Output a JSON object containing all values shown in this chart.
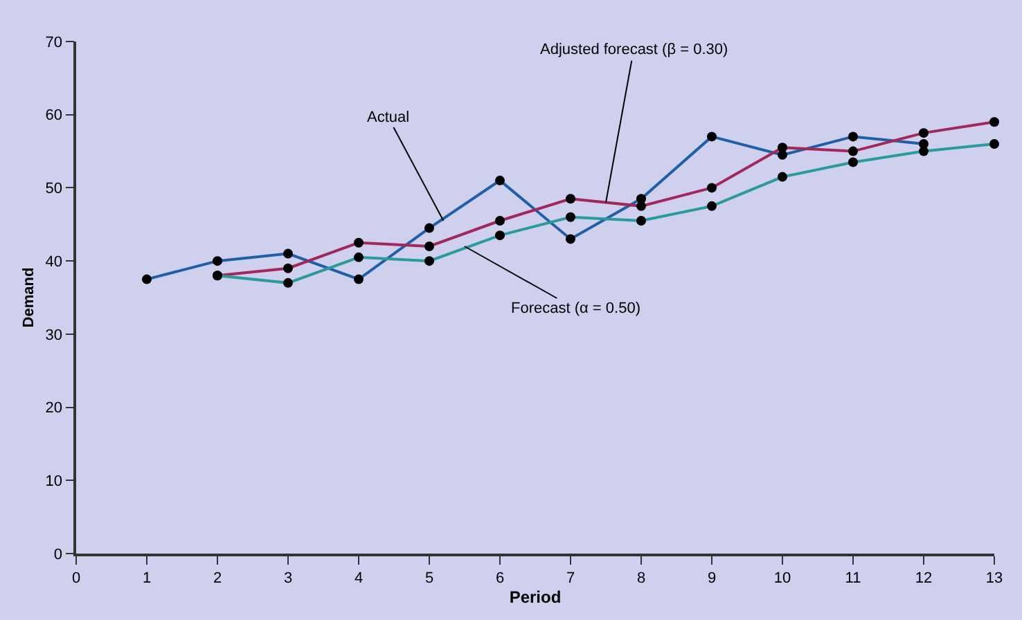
{
  "chart_data": {
    "type": "line",
    "xlabel": "Period",
    "ylabel": "Demand",
    "x": [
      1,
      2,
      3,
      4,
      5,
      6,
      7,
      8,
      9,
      10,
      11,
      12,
      13
    ],
    "series": [
      {
        "color": "#1f5fa8",
        "values": [
          37.5,
          40,
          41,
          37.5,
          44.5,
          51,
          43,
          48.5,
          57,
          54.5,
          57,
          56,
          null
        ]
      },
      {
        "color": "#a0285a",
        "values": [
          null,
          38,
          39,
          42.5,
          42,
          45.5,
          48.5,
          47.5,
          50,
          55.5,
          55,
          57.5,
          59
        ]
      },
      {
        "color": "#2a9a9a",
        "values": [
          null,
          38,
          37,
          40.5,
          40,
          43.5,
          46,
          45.5,
          47.5,
          51.5,
          53.5,
          55,
          56
        ]
      }
    ],
    "annotations": [
      {
        "text": "Actual",
        "x": 5.2,
        "y": 45.5
      },
      {
        "text": "Adjusted forecast (β = 0.30)",
        "x": 7.5,
        "y": 48
      },
      {
        "text": "Forecast (α = 0.50)",
        "x": 5.5,
        "y": 42
      }
    ],
    "xlim": [
      0,
      13
    ],
    "xticks": [
      0,
      1,
      2,
      3,
      4,
      5,
      6,
      7,
      8,
      9,
      10,
      11,
      12,
      13
    ],
    "ylim": [
      0,
      70
    ],
    "yticks": [
      0,
      10,
      20,
      30,
      40,
      50,
      60,
      70
    ],
    "grid": false,
    "marker": "circle",
    "line_style": "solid"
  }
}
